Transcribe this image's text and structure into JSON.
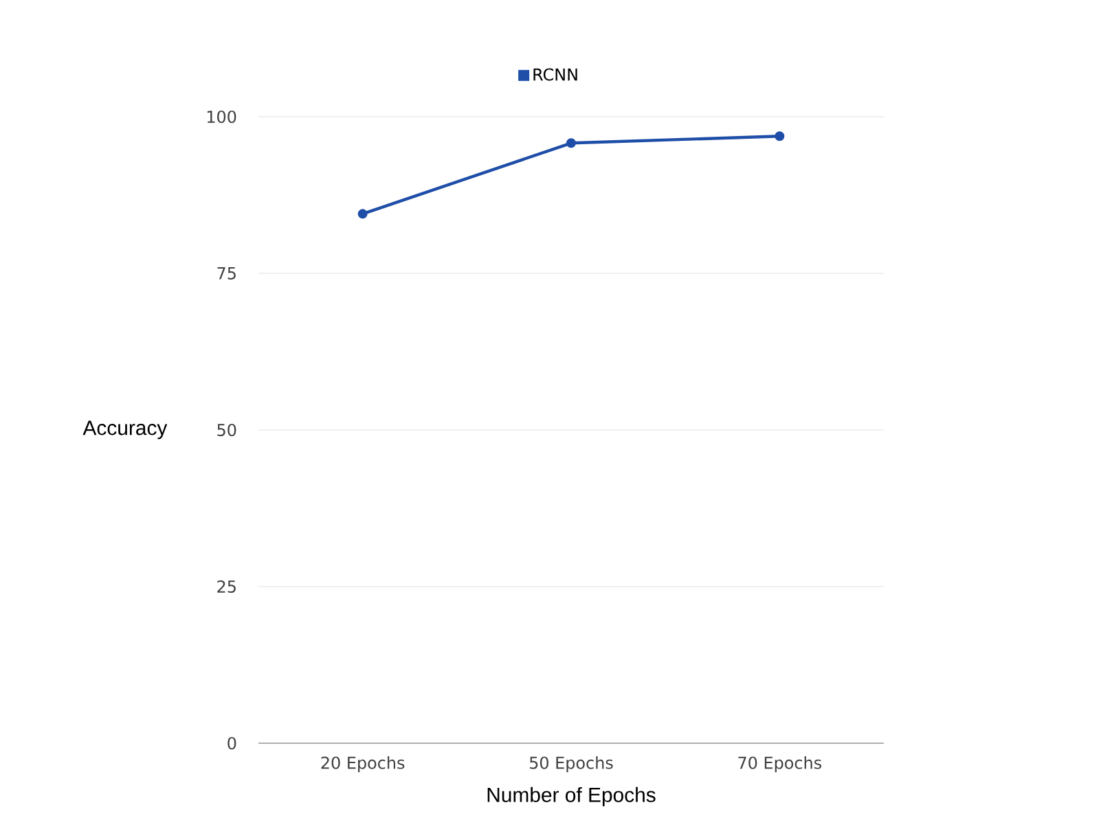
{
  "chart_data": {
    "type": "line",
    "xlabel": "Number of Epochs",
    "ylabel": "Accuracy",
    "categories": [
      "20 Epochs",
      "50 Epochs",
      "70 Epochs"
    ],
    "series": [
      {
        "name": "RCNN",
        "color": "#1f4ea8",
        "values": [
          84.5,
          95.8,
          96.9
        ]
      }
    ],
    "ylim": [
      0,
      100
    ],
    "yticks": [
      0,
      25,
      50,
      75,
      100
    ],
    "grid": "y",
    "legend": "top",
    "marker": "circle",
    "line_style": "solid"
  }
}
